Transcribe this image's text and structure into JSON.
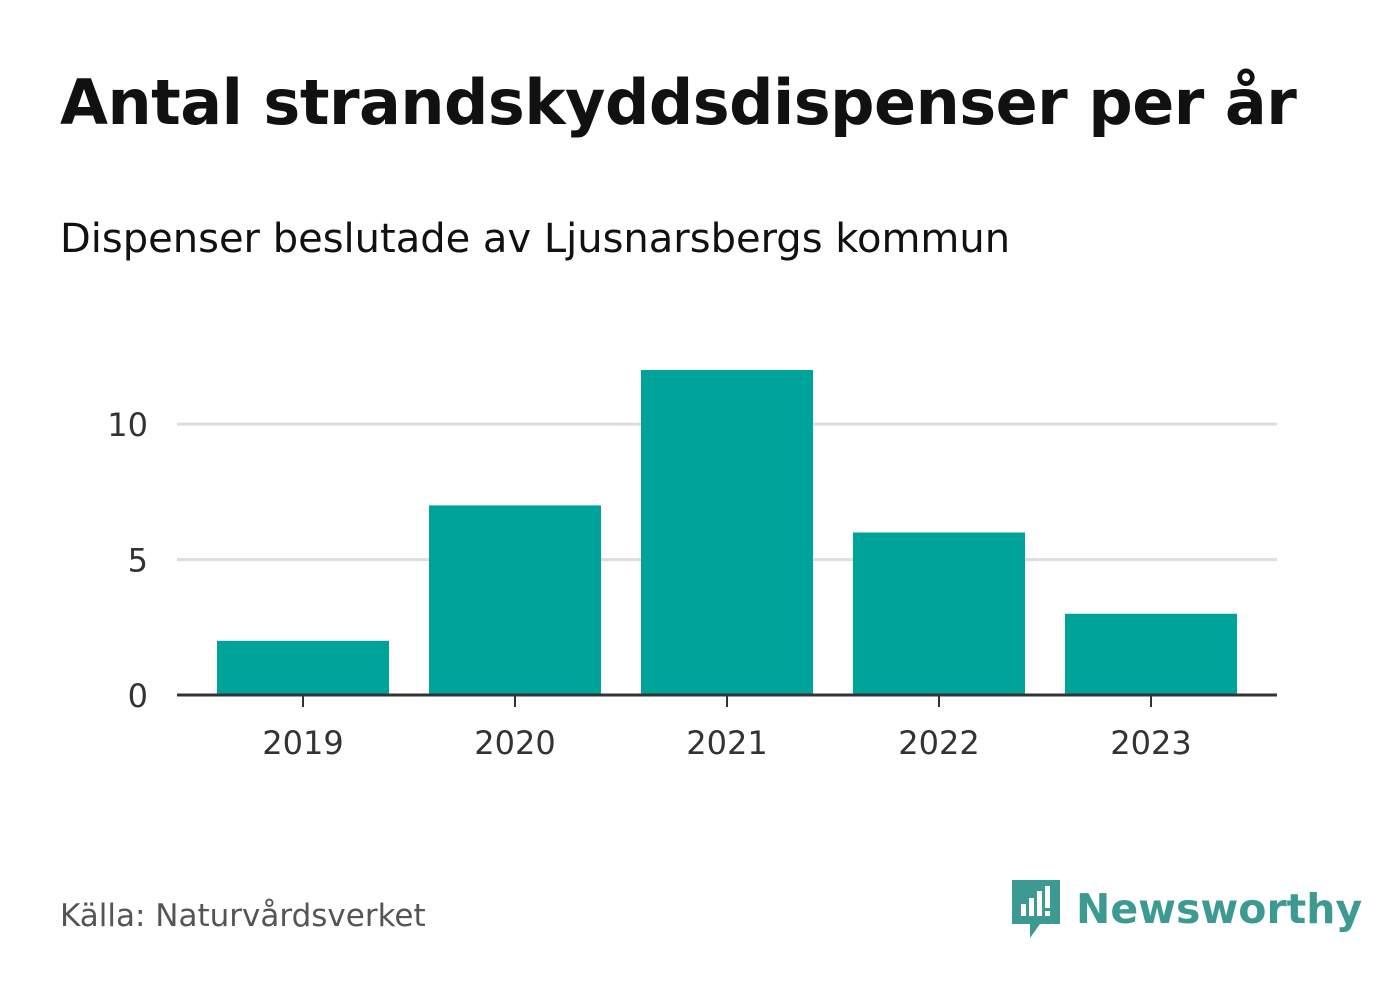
{
  "title": "Antal strandskyddsdispenser per år",
  "subtitle": "Dispenser beslutade av Ljusnarsbergs kommun",
  "source": "Källa: Naturvårdsverket",
  "brand": {
    "name": "Newsworthy",
    "logo_icon": "newsworthy-logo-icon"
  },
  "colors": {
    "bar": "#00a39a",
    "grid": "#dddddd",
    "axis": "#333333",
    "brand": "#3d9a92"
  },
  "chart_data": {
    "type": "bar",
    "title": "Antal strandskyddsdispenser per år",
    "subtitle": "Dispenser beslutade av Ljusnarsbergs kommun",
    "categories": [
      "2019",
      "2020",
      "2021",
      "2022",
      "2023"
    ],
    "values": [
      2,
      7,
      12,
      6,
      3
    ],
    "xlabel": "",
    "ylabel": "",
    "ylim": [
      0,
      12
    ],
    "yticks": [
      0,
      5,
      10
    ],
    "grid": true,
    "legend": "none"
  }
}
